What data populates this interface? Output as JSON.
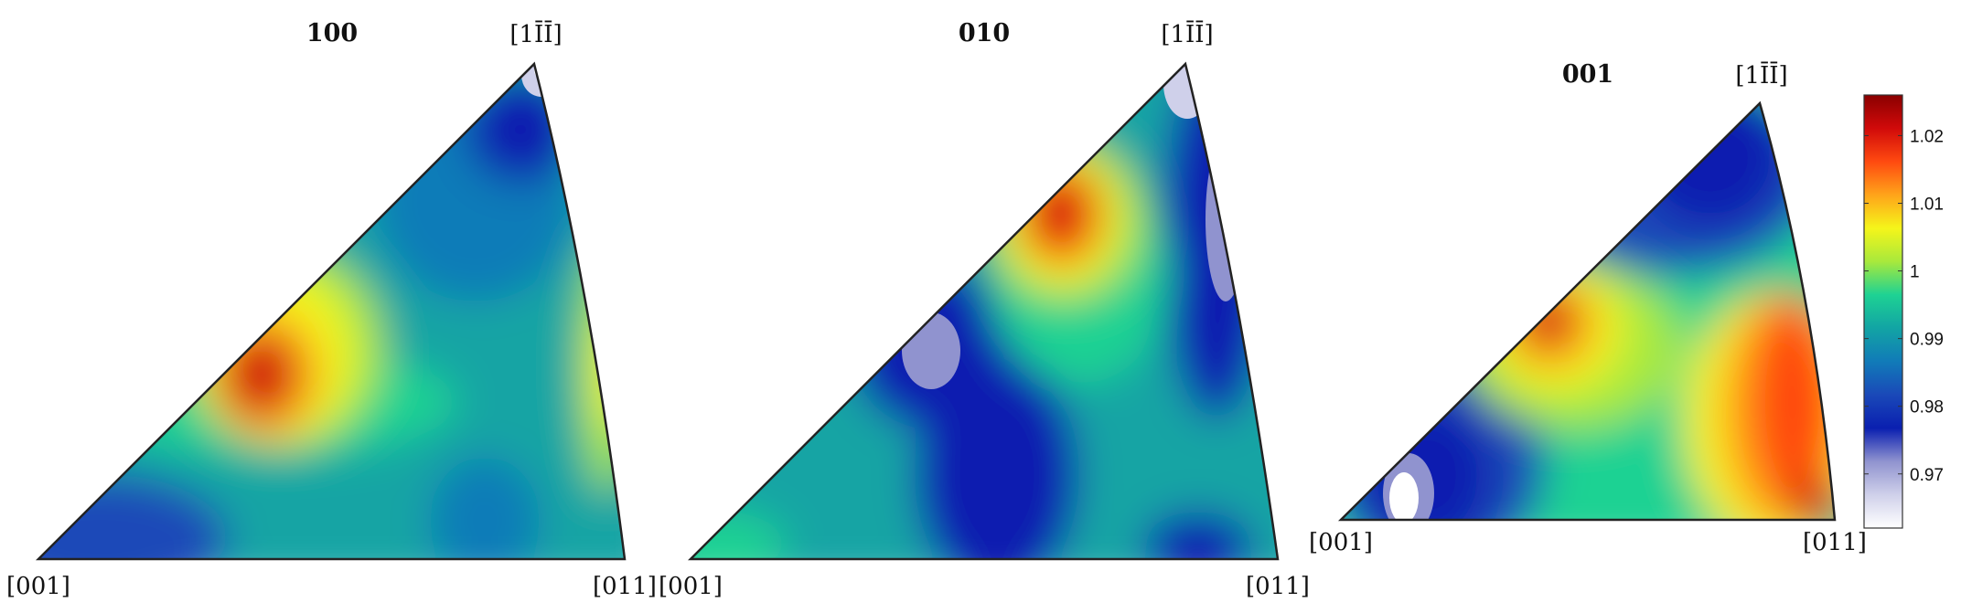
{
  "chart_data": {
    "type": "heatmap",
    "plots": [
      {
        "title": "100",
        "corner_labels": [
          "[001]",
          "[011]",
          "[1ĪĪ]"
        ]
      },
      {
        "title": "010",
        "corner_labels": [
          "[001]",
          "[011]",
          "[1ĪĪ]"
        ]
      },
      {
        "title": "001",
        "corner_labels": [
          "[001]",
          "[011]",
          "[1ĪĪ]"
        ]
      }
    ],
    "colorbar": {
      "ticks": [
        "0.97",
        "0.98",
        "0.99",
        "1",
        "1.01",
        "1.02"
      ],
      "range": [
        0.962,
        1.026
      ],
      "colormap": [
        "#ffffff",
        "#cfd0ea",
        "#9093cf",
        "#0a1fb0",
        "#1a49b8",
        "#117bb8",
        "#12a4a4",
        "#1ed293",
        "#a8e93c",
        "#f5f51a",
        "#ffa41a",
        "#ff4a10",
        "#d10a0a",
        "#8a0000"
      ]
    }
  }
}
